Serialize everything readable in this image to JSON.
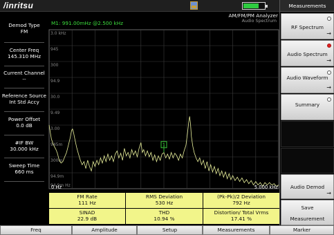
{
  "header": {
    "logo": "/inritsu",
    "battery_fill": 0.7,
    "gps_icon": "gps-icon",
    "battery_icon": "battery-icon",
    "colors": {
      "trace": "#e8ef9a",
      "marker": "#3cdc3c",
      "grid": "#3d3d3d",
      "measurement_cells": "#f2f58a"
    }
  },
  "left_panel": {
    "items": [
      {
        "label": "Demod Type",
        "value": "FM"
      },
      {
        "label": "Center Freq",
        "value": "145.310 MHz"
      },
      {
        "label": "Current Channel",
        "value": "--"
      },
      {
        "label": "Reference Source",
        "value": "Int Std Accy"
      },
      {
        "label": "Power Offset",
        "value": "0.0 dB"
      },
      {
        "label": "#IF BW",
        "value": "30.000 kHz"
      },
      {
        "label": "Sweep Time",
        "value": "660 ms"
      }
    ]
  },
  "display": {
    "mode_title": "AM/FM/PM Analyzer",
    "mode_subtitle": "Audio Spectrum",
    "marker_readout": "M1: 991.00mHz @2.500 kHz",
    "marker_label": "1",
    "x_start": "0 Hz",
    "x_end": "5.000 kHz"
  },
  "chart_data": {
    "type": "line",
    "xlabel": "",
    "ylabel": "",
    "xlim": [
      0,
      5000
    ],
    "ylim": [
      94.5,
      3000
    ],
    "scale": "log",
    "tick_labels": [
      "3.0 kHz",
      "945",
      "300",
      "94.9",
      "30.0",
      "9.49",
      "3.00",
      "945m",
      "300m",
      "94.9m",
      "94.9m Hz"
    ],
    "marker": {
      "x": 2500,
      "y": 0.991
    },
    "series": [
      {
        "values": [
          [
            0,
            6
          ],
          [
            50,
            2.4
          ],
          [
            100,
            1.6
          ],
          [
            150,
            1.2
          ],
          [
            180,
            0.95
          ],
          [
            220,
            0.6
          ],
          [
            260,
            0.5
          ],
          [
            300,
            0.55
          ],
          [
            340,
            0.75
          ],
          [
            380,
            1.0
          ],
          [
            420,
            1.6
          ],
          [
            460,
            2.6
          ],
          [
            490,
            4.2
          ],
          [
            510,
            4.6
          ],
          [
            530,
            3.8
          ],
          [
            560,
            2.4
          ],
          [
            600,
            1.4
          ],
          [
            640,
            0.9
          ],
          [
            680,
            0.6
          ],
          [
            720,
            0.45
          ],
          [
            760,
            0.55
          ],
          [
            800,
            0.35
          ],
          [
            840,
            0.6
          ],
          [
            880,
            0.4
          ],
          [
            920,
            0.3
          ],
          [
            960,
            0.55
          ],
          [
            1000,
            0.4
          ],
          [
            1040,
            0.6
          ],
          [
            1080,
            0.45
          ],
          [
            1120,
            0.7
          ],
          [
            1160,
            0.5
          ],
          [
            1200,
            0.8
          ],
          [
            1240,
            0.55
          ],
          [
            1280,
            0.9
          ],
          [
            1320,
            0.6
          ],
          [
            1360,
            0.8
          ],
          [
            1400,
            0.55
          ],
          [
            1440,
            0.9
          ],
          [
            1480,
            1.1
          ],
          [
            1520,
            0.7
          ],
          [
            1560,
            0.95
          ],
          [
            1600,
            0.6
          ],
          [
            1640,
            1.3
          ],
          [
            1680,
            0.8
          ],
          [
            1720,
            1.0
          ],
          [
            1760,
            0.7
          ],
          [
            1800,
            1.2
          ],
          [
            1840,
            0.85
          ],
          [
            1880,
            1.1
          ],
          [
            1920,
            0.75
          ],
          [
            1960,
            1.3
          ],
          [
            2000,
            1.9
          ],
          [
            2030,
            1.0
          ],
          [
            2060,
            1.2
          ],
          [
            2100,
            0.8
          ],
          [
            2140,
            1.1
          ],
          [
            2180,
            0.75
          ],
          [
            2220,
            1.0
          ],
          [
            2260,
            0.6
          ],
          [
            2300,
            0.85
          ],
          [
            2340,
            0.55
          ],
          [
            2380,
            0.8
          ],
          [
            2420,
            0.6
          ],
          [
            2460,
            0.9
          ],
          [
            2500,
            0.99
          ],
          [
            2540,
            0.7
          ],
          [
            2580,
            0.9
          ],
          [
            2620,
            0.65
          ],
          [
            2660,
            1.0
          ],
          [
            2700,
            0.7
          ],
          [
            2740,
            0.95
          ],
          [
            2780,
            0.8
          ],
          [
            2820,
            0.6
          ],
          [
            2860,
            0.9
          ],
          [
            2900,
            0.7
          ],
          [
            2940,
            1.1
          ],
          [
            2980,
            1.6
          ],
          [
            3010,
            3.2
          ],
          [
            3040,
            7.2
          ],
          [
            3060,
            10.5
          ],
          [
            3080,
            6.5
          ],
          [
            3100,
            2.8
          ],
          [
            3130,
            1.5
          ],
          [
            3160,
            1.0
          ],
          [
            3200,
            0.7
          ],
          [
            3240,
            0.55
          ],
          [
            3280,
            0.7
          ],
          [
            3320,
            0.45
          ],
          [
            3360,
            0.6
          ],
          [
            3400,
            0.35
          ],
          [
            3440,
            0.55
          ],
          [
            3480,
            0.3
          ],
          [
            3520,
            0.45
          ],
          [
            3560,
            0.28
          ],
          [
            3600,
            0.4
          ],
          [
            3640,
            0.25
          ],
          [
            3680,
            0.35
          ],
          [
            3720,
            0.22
          ],
          [
            3760,
            0.3
          ],
          [
            3800,
            0.2
          ],
          [
            3840,
            0.28
          ],
          [
            3880,
            0.18
          ],
          [
            3920,
            0.25
          ],
          [
            3960,
            0.17
          ],
          [
            4000,
            0.22
          ],
          [
            4050,
            0.16
          ],
          [
            4100,
            0.2
          ],
          [
            4150,
            0.15
          ],
          [
            4200,
            0.19
          ],
          [
            4250,
            0.14
          ],
          [
            4300,
            0.17
          ],
          [
            4350,
            0.13
          ],
          [
            4400,
            0.16
          ],
          [
            4450,
            0.12
          ],
          [
            4500,
            0.15
          ],
          [
            4550,
            0.12
          ],
          [
            4600,
            0.14
          ],
          [
            4650,
            0.11
          ],
          [
            4700,
            0.14
          ],
          [
            4750,
            0.12
          ],
          [
            4800,
            0.14
          ],
          [
            4850,
            0.12
          ],
          [
            4900,
            0.13
          ],
          [
            4950,
            0.11
          ],
          [
            5000,
            0.12
          ]
        ]
      }
    ]
  },
  "measurements": [
    {
      "label": "FM Rate",
      "value": "111 Hz"
    },
    {
      "label": "RMS Deviation",
      "value": "530 Hz"
    },
    {
      "label": "(Pk-Pk)/2 Deviation",
      "value": "792 Hz"
    },
    {
      "label": "SINAD",
      "value": "22.9 dB"
    },
    {
      "label": "THD",
      "value": "10.94 %"
    },
    {
      "label": "Distortion/ Total Vrms",
      "value": "17.41 %"
    }
  ],
  "right_panel": {
    "title": "Measurements",
    "softkeys": [
      {
        "label": "RF Spectrum",
        "indicator": "circle-icon",
        "active": false,
        "arrow": "→"
      },
      {
        "label": "Audio Spectrum",
        "indicator": "circle-icon",
        "active": true,
        "arrow": "→"
      },
      {
        "label": "Audio Waveform",
        "indicator": "circle-icon",
        "active": false,
        "arrow": "→"
      },
      {
        "label": "Summary",
        "indicator": "circle-icon",
        "active": false,
        "arrow": ""
      }
    ],
    "audio_demod": {
      "label": "Audio Demod",
      "arrow": "→"
    },
    "save": {
      "line1": "Save",
      "line2": "Measurement"
    }
  },
  "bottom_tabs": [
    "Freq",
    "Amplitude",
    "Setup",
    "Measurements",
    "Marker"
  ]
}
